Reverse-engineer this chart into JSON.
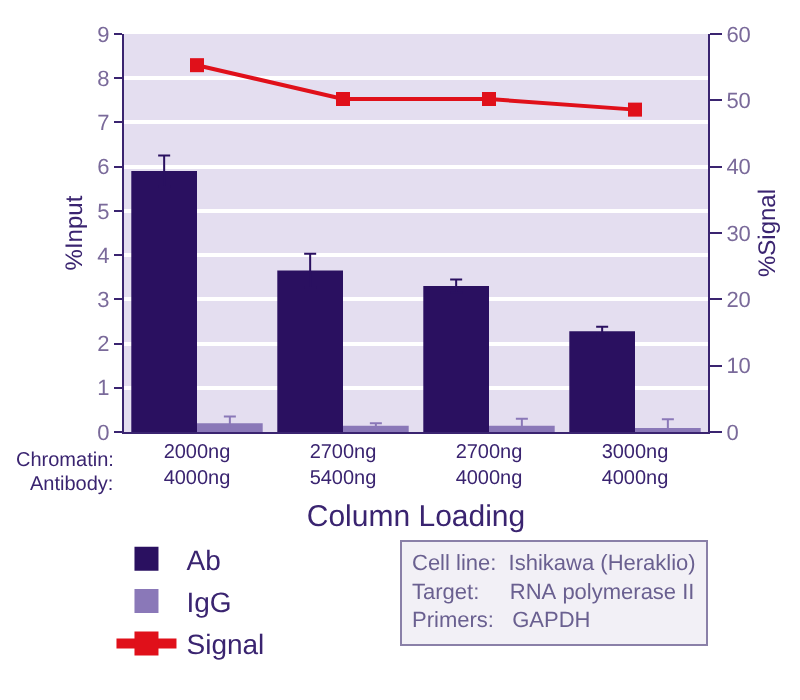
{
  "chart_data": {
    "type": "bar",
    "xlabel": "Column Loading",
    "ylabel": "%Input",
    "y2label": "%Signal",
    "categories": [
      "2000ng\n4000ng",
      "2700ng\n5400ng",
      "2700ng\n4000ng",
      "3000ng\n4000ng"
    ],
    "series": [
      {
        "name": "Ab",
        "color": "#2a1060",
        "values": [
          5.9,
          3.65,
          3.3,
          2.28
        ],
        "errors": [
          0.35,
          0.38,
          0.15,
          0.1
        ]
      },
      {
        "name": "IgG",
        "color": "#8a78b8",
        "values": [
          0.2,
          0.14,
          0.14,
          0.07
        ],
        "errors": [
          0.15,
          0.06,
          0.16,
          0.22
        ]
      },
      {
        "name": "Signal",
        "type": "line",
        "axis": "y2",
        "color": "#e0101a",
        "marker": "square",
        "values": [
          55.3,
          50.2,
          50.2,
          48.6
        ]
      }
    ],
    "ylim": [
      0,
      9
    ],
    "yticks": [
      0,
      1,
      2,
      3,
      4,
      5,
      6,
      7,
      8,
      9
    ],
    "y2lim": [
      0,
      60
    ],
    "y2ticks": [
      0,
      10,
      20,
      30,
      40,
      50,
      60
    ],
    "grid": "y",
    "legend": "bottom left",
    "annotations": [
      "Chromatin:",
      "Antibody:",
      "Cell line:  Ishikawa (Heraklio)",
      "Target:     RNA polymerase II",
      "Primers:   GAPDH"
    ]
  }
}
